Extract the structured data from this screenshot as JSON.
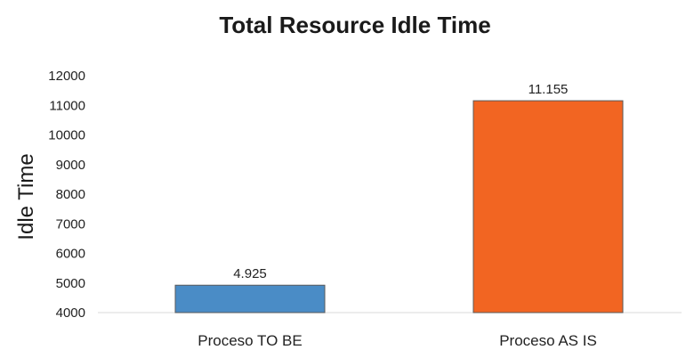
{
  "chart_data": {
    "type": "bar",
    "title": "Total Resource Idle Time",
    "ylabel": "Idle Time",
    "xlabel": "",
    "categories": [
      "Proceso TO BE",
      "Proceso AS IS"
    ],
    "values": [
      4925,
      11155
    ],
    "data_labels": [
      "4.925",
      "11.155"
    ],
    "colors": [
      "#4a8cc6",
      "#f26522"
    ],
    "ylim": [
      4000,
      12000
    ],
    "yticks": [
      "4000",
      "5000",
      "6000",
      "7000",
      "8000",
      "9000",
      "10000",
      "11000",
      "12000"
    ],
    "grid": false,
    "legend": "none"
  }
}
